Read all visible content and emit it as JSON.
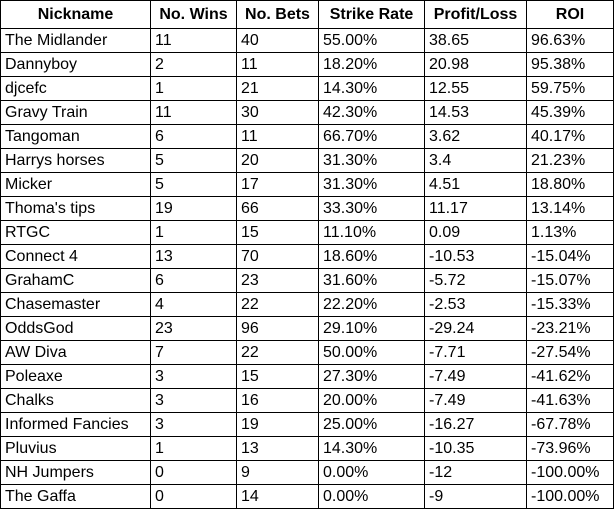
{
  "table": {
    "header": [
      "Nickname",
      "No. Wins",
      "No. Bets",
      "Strike Rate",
      "Profit/Loss",
      "ROI"
    ],
    "rows": [
      [
        "The Midlander",
        "11",
        "40",
        "55.00%",
        "38.65",
        "96.63%"
      ],
      [
        "Dannyboy",
        "2",
        "11",
        "18.20%",
        "20.98",
        "95.38%"
      ],
      [
        "djcefc",
        "1",
        "21",
        "14.30%",
        "12.55",
        "59.75%"
      ],
      [
        "Gravy Train",
        "11",
        "30",
        "42.30%",
        "14.53",
        "45.39%"
      ],
      [
        "Tangoman",
        "6",
        "11",
        "66.70%",
        "3.62",
        "40.17%"
      ],
      [
        "Harrys horses",
        "5",
        "20",
        "31.30%",
        "3.4",
        "21.23%"
      ],
      [
        "Micker",
        "5",
        "17",
        "31.30%",
        "4.51",
        "18.80%"
      ],
      [
        "Thoma's tips",
        "19",
        "66",
        "33.30%",
        "11.17",
        "13.14%"
      ],
      [
        "RTGC",
        "1",
        "15",
        "11.10%",
        "0.09",
        "1.13%"
      ],
      [
        "Connect 4",
        "13",
        "70",
        "18.60%",
        "-10.53",
        "-15.04%"
      ],
      [
        "GrahamC",
        "6",
        "23",
        "31.60%",
        "-5.72",
        "-15.07%"
      ],
      [
        "Chasemaster",
        "4",
        "22",
        "22.20%",
        "-2.53",
        "-15.33%"
      ],
      [
        "OddsGod",
        "23",
        "96",
        "29.10%",
        "-29.24",
        "-23.21%"
      ],
      [
        "AW Diva",
        "7",
        "22",
        "50.00%",
        "-7.71",
        "-27.54%"
      ],
      [
        "Poleaxe",
        "3",
        "15",
        "27.30%",
        "-7.49",
        "-41.62%"
      ],
      [
        "Chalks",
        "3",
        "16",
        "20.00%",
        "-7.49",
        "-41.63%"
      ],
      [
        "Informed Fancies",
        "3",
        "19",
        "25.00%",
        "-16.27",
        "-67.78%"
      ],
      [
        "Pluvius",
        "1",
        "13",
        "14.30%",
        "-10.35",
        "-73.96%"
      ],
      [
        "NH Jumpers",
        "0",
        "9",
        "0.00%",
        "-12",
        "-100.00%"
      ],
      [
        "The Gaffa",
        "0",
        "14",
        "0.00%",
        "-9",
        "-100.00%"
      ]
    ]
  }
}
